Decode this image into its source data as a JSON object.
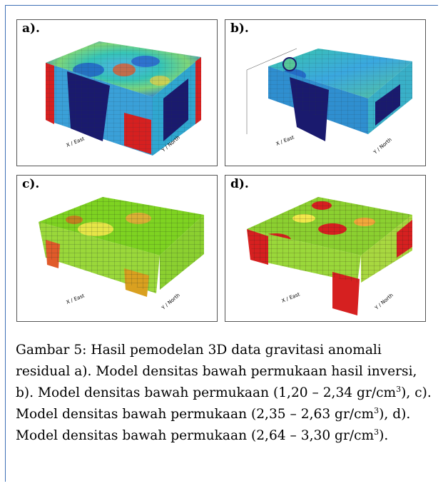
{
  "panels": [
    {
      "label": "a).",
      "x_axis": "X / East",
      "y_axis": "Y / North"
    },
    {
      "label": "b).",
      "x_axis": "X / East",
      "y_axis": "Y / North"
    },
    {
      "label": "c).",
      "x_axis": "X / East",
      "y_axis": "Y / North"
    },
    {
      "label": "d).",
      "x_axis": "X / East",
      "y_axis": "Y / North"
    }
  ],
  "caption": {
    "p1": "Gambar 5: Hasil pemodelan 3D data gravitasi anomali residual a). Model densitas bawah permukaan hasil inversi, b). Model densitas bawah permukaan (1,20 – 2,34 gr/cm",
    "sup1": "3",
    "p2": "), c). Model densitas bawah permukaan (2,35 – 2,63 gr/cm",
    "sup2": "3",
    "p3": "), d). Model densitas bawah permukaan (2,64 – 3,30 gr/cm",
    "sup3": "3",
    "p4": ")."
  },
  "colors": {
    "frame": "#3d6fb5",
    "low": "#1a1a6e",
    "mid": "#2fbf71",
    "high": "#d62020",
    "green": "#7ed321",
    "yellow": "#f2e84b"
  }
}
